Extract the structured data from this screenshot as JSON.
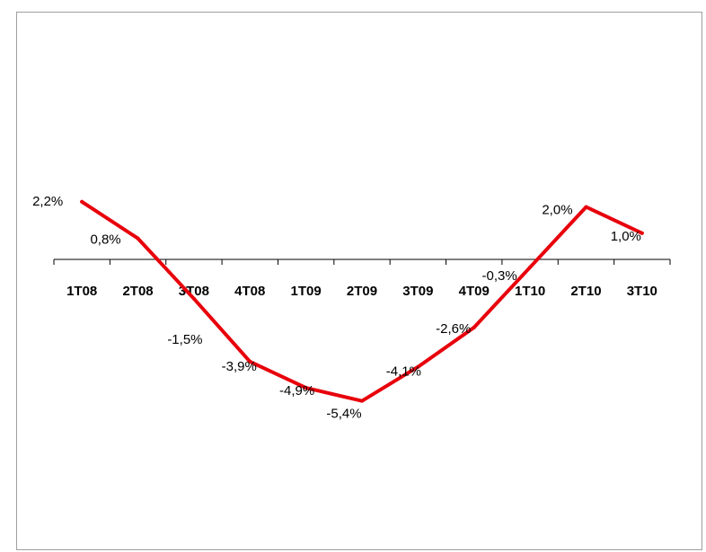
{
  "chart_data": {
    "type": "line",
    "categories": [
      "1T08",
      "2T08",
      "3T08",
      "4T08",
      "1T09",
      "2T09",
      "3T09",
      "4T09",
      "1T10",
      "2T10",
      "3T10"
    ],
    "series": [
      {
        "values": [
          2.2,
          0.8,
          -1.5,
          -3.9,
          -4.9,
          -5.4,
          -4.1,
          -2.6,
          -0.3,
          2.0,
          1.0
        ],
        "labels": [
          "2,2%",
          "0,8%",
          "-1,5%",
          "-3,9%",
          "-4,9%",
          "-5,4%",
          "-4,1%",
          "-2,6%",
          "-0,3%",
          "2,0%",
          "1,0%"
        ],
        "color": "#e8000b"
      }
    ],
    "title": "",
    "xlabel": "",
    "ylabel": "",
    "ylim": [
      -8,
      6
    ],
    "grid": false,
    "legend": "none"
  }
}
